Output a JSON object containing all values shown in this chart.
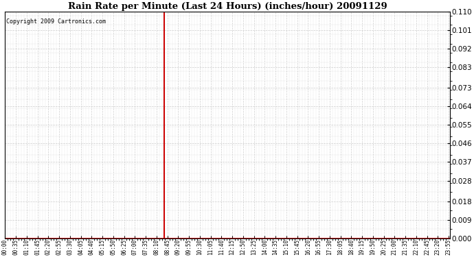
{
  "title": "Rain Rate per Minute (Last 24 Hours) (inches/hour) 20091129",
  "copyright": "Copyright 2009 Cartronics.com",
  "background_color": "#ffffff",
  "line_color": "#cc0000",
  "grid_color": "#cccccc",
  "yticks": [
    0.0,
    0.009,
    0.018,
    0.028,
    0.037,
    0.046,
    0.055,
    0.064,
    0.073,
    0.083,
    0.092,
    0.101,
    0.11
  ],
  "ymin": 0.0,
  "ymax": 0.11,
  "spike_value": 0.11,
  "total_minutes": 1440,
  "spike_minute": 515,
  "xtick_minutes": [
    0,
    35,
    70,
    105,
    140,
    175,
    210,
    245,
    280,
    315,
    350,
    385,
    420,
    455,
    490,
    525,
    560,
    595,
    630,
    665,
    700,
    735,
    770,
    805,
    840,
    875,
    910,
    945,
    980,
    1015,
    1050,
    1085,
    1120,
    1155,
    1190,
    1225,
    1260,
    1295,
    1330,
    1365,
    1400,
    1435
  ],
  "xtick_labels": [
    "00:00",
    "00:35",
    "01:10",
    "01:45",
    "02:20",
    "02:55",
    "03:30",
    "04:05",
    "04:40",
    "05:15",
    "05:50",
    "06:25",
    "07:00",
    "07:35",
    "08:10",
    "08:45",
    "09:20",
    "09:55",
    "10:30",
    "11:05",
    "11:40",
    "12:15",
    "12:50",
    "13:25",
    "14:00",
    "14:35",
    "15:10",
    "15:45",
    "16:20",
    "16:55",
    "17:30",
    "18:05",
    "18:40",
    "19:15",
    "19:50",
    "20:25",
    "21:00",
    "21:35",
    "22:10",
    "22:45",
    "23:20",
    "23:55"
  ],
  "figwidth": 6.9,
  "figheight": 3.75,
  "dpi": 100
}
